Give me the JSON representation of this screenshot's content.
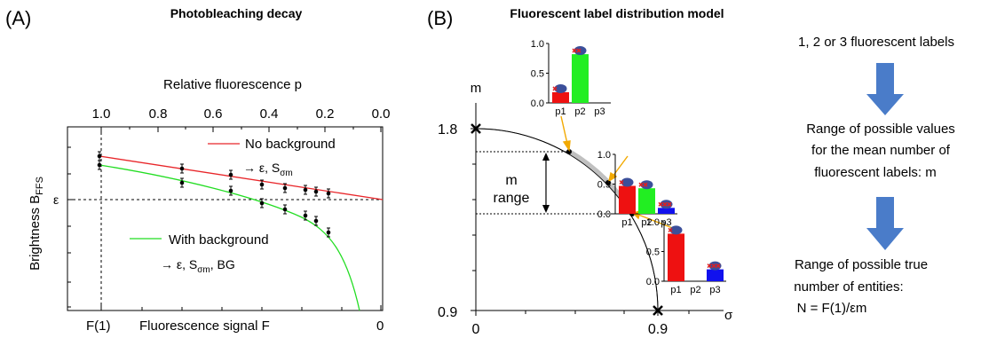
{
  "panel_a": {
    "panel_label": "(A)",
    "title": "Photobleaching decay",
    "top_axis_label": "Relative fluorescence p",
    "top_ticks": [
      "1.0",
      "0.8",
      "0.6",
      "0.4",
      "0.2",
      "0.0"
    ],
    "y_axis_label": "Brightness B",
    "y_axis_sub": "FFS",
    "y_tick_label": "ε",
    "bottom_axis_label": "Fluorescence signal F",
    "bottom_tick_left": "F(1)",
    "bottom_tick_right": "0",
    "legend": {
      "no_bg": "No background",
      "no_bg_result": "→ ε, S",
      "no_bg_result_sub": "σm",
      "with_bg": "With background",
      "with_bg_result": "→ ε, S",
      "with_bg_result_sub": "σm",
      "with_bg_result_tail": ", BG"
    },
    "colors": {
      "no_bg": "#e8262a",
      "with_bg": "#22dd22"
    }
  },
  "panel_b": {
    "panel_label": "(B)",
    "title": "Fluorescent label distribution model",
    "y_axis_label": "m",
    "y_tick_top": "1.8",
    "y_tick_bottom": "0.9",
    "x_axis_label": "σ",
    "x_tick_left": "0",
    "x_tick_right": "0.9",
    "range_label_line1": "m",
    "range_label_line2": "range",
    "insets": [
      {
        "values": [
          0.18,
          0.82,
          0.0
        ],
        "ytick_top": "1.0",
        "ytick_mid": "0.5",
        "ytick_bottom": "0.0",
        "categories": [
          "p1",
          "p2",
          "p3"
        ]
      },
      {
        "values": [
          0.47,
          0.43,
          0.1
        ],
        "ytick_top": "1.0",
        "ytick_mid": "0.5",
        "ytick_bottom": "0.0",
        "categories": [
          "p1",
          "p2",
          "p3"
        ]
      },
      {
        "values": [
          0.8,
          0.0,
          0.2
        ],
        "ytick_top": "1.0",
        "ytick_mid": "0.5",
        "ytick_bottom": "0.0",
        "categories": [
          "p1",
          "p2",
          "p3"
        ]
      }
    ],
    "bar_colors": [
      "#ee1111",
      "#22ee22",
      "#1111ee"
    ]
  },
  "flow": {
    "step1": "1, 2 or 3 fluorescent labels",
    "step2_lines": [
      "Range of possible values",
      "for the mean number of",
      "fluorescent labels: m"
    ],
    "step3_lines": [
      "Range of possible true",
      "number of entities:",
      "N = F(1)/εm"
    ],
    "arrow_color": "#4a7cc9"
  }
}
